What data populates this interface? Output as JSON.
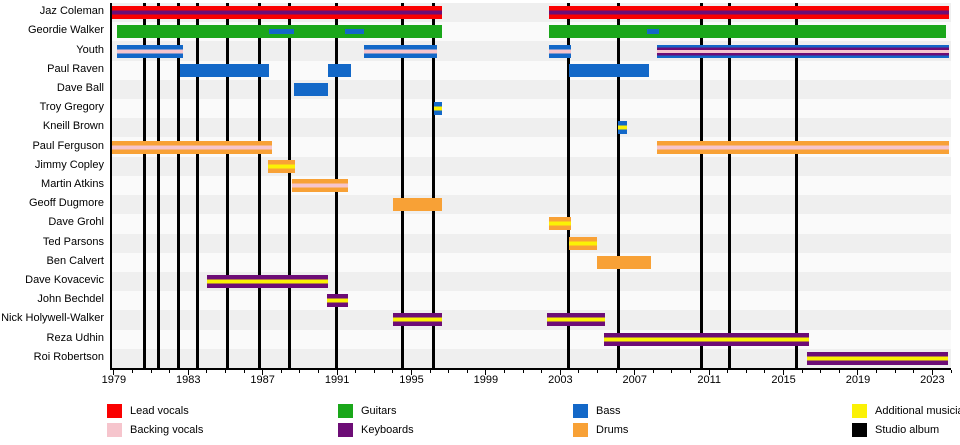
{
  "chart_data": {
    "type": "bar",
    "subtype": "band-membership-timeline",
    "title": "",
    "axis": {
      "min": 1978.9,
      "max": 2024.0,
      "major_ticks": [
        1979,
        1983,
        1987,
        1991,
        1995,
        1999,
        2003,
        2007,
        2011,
        2015,
        2019,
        2023
      ],
      "minor_tick_step": 1
    },
    "members": [
      {
        "name": "Jaz Coleman",
        "bars": [
          {
            "start": 1978.9,
            "end": 1996.65,
            "stripes": [
              "lead",
              "keyboards",
              "lead"
            ]
          },
          {
            "start": 2002.4,
            "end": 2023.9,
            "stripes": [
              "lead",
              "keyboards",
              "lead"
            ]
          }
        ]
      },
      {
        "name": "Geordie Walker",
        "bars": [
          {
            "start": 1979.15,
            "end": 1996.65,
            "stripes": [
              "guitars"
            ]
          },
          {
            "start": 2002.4,
            "end": 2023.75,
            "stripes": [
              "guitars"
            ]
          }
        ],
        "overlays": [
          {
            "start": 1987.35,
            "end": 1988.7,
            "role": "bass"
          },
          {
            "start": 1991.4,
            "end": 1992.45,
            "role": "bass"
          },
          {
            "start": 2007.65,
            "end": 2008.3,
            "role": "bass"
          }
        ]
      },
      {
        "name": "Youth",
        "bars": [
          {
            "start": 1979.15,
            "end": 1982.7,
            "stripes": [
              "bass",
              "backing",
              "bass"
            ]
          },
          {
            "start": 1992.45,
            "end": 1996.35,
            "stripes": [
              "bass",
              "backing",
              "bass"
            ]
          },
          {
            "start": 2002.4,
            "end": 2003.55,
            "stripes": [
              "bass",
              "backing",
              "bass"
            ]
          },
          {
            "start": 2008.2,
            "end": 2023.9,
            "stripes": [
              "bass",
              "keyboards",
              "backing",
              "keyboards",
              "bass"
            ]
          }
        ]
      },
      {
        "name": "Paul Raven",
        "bars": [
          {
            "start": 1982.55,
            "end": 1987.35,
            "stripes": [
              "bass"
            ]
          },
          {
            "start": 1990.5,
            "end": 1991.75,
            "stripes": [
              "bass"
            ]
          },
          {
            "start": 2003.45,
            "end": 2007.75,
            "stripes": [
              "bass"
            ]
          }
        ]
      },
      {
        "name": "Dave Ball",
        "bars": [
          {
            "start": 1988.7,
            "end": 1990.5,
            "stripes": [
              "bass"
            ]
          }
        ]
      },
      {
        "name": "Troy Gregory",
        "bars": [
          {
            "start": 1996.2,
            "end": 1996.65,
            "stripes": [
              "bass",
              "additional",
              "bass"
            ]
          }
        ]
      },
      {
        "name": "Kneill Brown",
        "bars": [
          {
            "start": 2006.1,
            "end": 2006.6,
            "stripes": [
              "bass",
              "additional",
              "bass"
            ]
          }
        ]
      },
      {
        "name": "Paul Ferguson",
        "bars": [
          {
            "start": 1978.9,
            "end": 1987.5,
            "stripes": [
              "drums",
              "backing",
              "drums"
            ]
          },
          {
            "start": 2008.2,
            "end": 2023.9,
            "stripes": [
              "drums",
              "backing",
              "drums"
            ]
          }
        ]
      },
      {
        "name": "Jimmy Copley",
        "bars": [
          {
            "start": 1987.3,
            "end": 1988.75,
            "stripes": [
              "drums",
              "additional",
              "drums"
            ]
          }
        ]
      },
      {
        "name": "Martin Atkins",
        "bars": [
          {
            "start": 1988.6,
            "end": 1991.6,
            "stripes": [
              "drums",
              "backing",
              "drums"
            ]
          }
        ]
      },
      {
        "name": "Geoff Dugmore",
        "bars": [
          {
            "start": 1994.0,
            "end": 1996.65,
            "stripes": [
              "drums"
            ]
          }
        ]
      },
      {
        "name": "Dave Grohl",
        "bars": [
          {
            "start": 2002.4,
            "end": 2003.55,
            "stripes": [
              "drums",
              "additional",
              "drums"
            ]
          }
        ]
      },
      {
        "name": "Ted Parsons",
        "bars": [
          {
            "start": 2003.45,
            "end": 2004.95,
            "stripes": [
              "drums",
              "additional",
              "drums"
            ]
          }
        ]
      },
      {
        "name": "Ben Calvert",
        "bars": [
          {
            "start": 2004.95,
            "end": 2007.9,
            "stripes": [
              "drums"
            ]
          }
        ]
      },
      {
        "name": "Dave Kovacevic",
        "bars": [
          {
            "start": 1984.0,
            "end": 1990.5,
            "stripes": [
              "keyboards",
              "additional",
              "keyboards"
            ]
          }
        ]
      },
      {
        "name": "John Bechdel",
        "bars": [
          {
            "start": 1990.45,
            "end": 1991.6,
            "stripes": [
              "keyboards",
              "additional",
              "keyboards"
            ]
          }
        ]
      },
      {
        "name": "Nick Holywell-Walker",
        "bars": [
          {
            "start": 1994.0,
            "end": 1996.65,
            "stripes": [
              "keyboards",
              "additional",
              "keyboards"
            ]
          },
          {
            "start": 2002.3,
            "end": 2005.4,
            "stripes": [
              "keyboards",
              "additional",
              "keyboards"
            ]
          }
        ]
      },
      {
        "name": "Reza Udhin",
        "bars": [
          {
            "start": 2005.35,
            "end": 2016.35,
            "stripes": [
              "keyboards",
              "additional",
              "keyboards"
            ]
          }
        ]
      },
      {
        "name": "Roi Robertson",
        "bars": [
          {
            "start": 2016.25,
            "end": 2023.85,
            "stripes": [
              "keyboards",
              "additional",
              "keyboards"
            ]
          }
        ]
      }
    ],
    "albums": [
      1980.65,
      1981.4,
      1982.45,
      1983.5,
      1985.1,
      1986.85,
      1988.45,
      1990.95,
      1994.5,
      1996.2,
      2003.45,
      2006.15,
      2010.6,
      2012.1,
      2015.7
    ],
    "legend": [
      {
        "label": "Lead vocals",
        "role": "lead"
      },
      {
        "label": "Backing vocals",
        "role": "backing"
      },
      {
        "label": "Guitars",
        "role": "guitars"
      },
      {
        "label": "Keyboards",
        "role": "keyboards"
      },
      {
        "label": "Bass",
        "role": "bass"
      },
      {
        "label": "Drums",
        "role": "drums"
      },
      {
        "label": "Additional musician",
        "role": "additional"
      },
      {
        "label": "Studio album",
        "role": "album"
      }
    ]
  },
  "colors": {
    "lead": "#fa0000",
    "backing": "#f6c5cd",
    "guitars": "#1aa71a",
    "keyboards": "#6d0d76",
    "bass": "#1368c8",
    "drums": "#f8a136",
    "additional": "#fbf105",
    "album": "#000000",
    "row_band_odd": "#efefef",
    "row_band_even": "#fafafa",
    "axis": "#000000"
  }
}
